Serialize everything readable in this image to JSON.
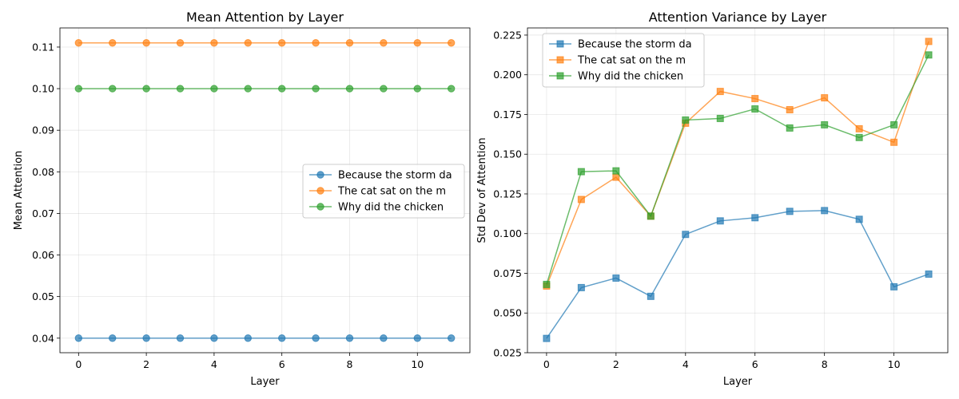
{
  "chart_data": [
    {
      "type": "line",
      "title": "Mean Attention by Layer",
      "xlabel": "Layer",
      "ylabel": "Mean Attention",
      "x": [
        0,
        1,
        2,
        3,
        4,
        5,
        6,
        7,
        8,
        9,
        10,
        11
      ],
      "xlim": [
        -0.55,
        11.55
      ],
      "ylim": [
        0.0365,
        0.1146
      ],
      "xticks": [
        0,
        2,
        4,
        6,
        8,
        10
      ],
      "yticks": [
        0.04,
        0.05,
        0.06,
        0.07,
        0.08,
        0.09,
        0.1,
        0.11
      ],
      "ytick_labels": [
        "0.04",
        "0.05",
        "0.06",
        "0.07",
        "0.08",
        "0.09",
        "0.10",
        "0.11"
      ],
      "marker": "circle",
      "grid": true,
      "legend_position": "center-right",
      "series": [
        {
          "name": "Because the storm da",
          "color": "#1f77b4",
          "values": [
            0.04,
            0.04,
            0.04,
            0.04,
            0.04,
            0.04,
            0.04,
            0.04,
            0.04,
            0.04,
            0.04,
            0.04
          ]
        },
        {
          "name": "The cat sat on the m",
          "color": "#ff7f0e",
          "values": [
            0.111,
            0.111,
            0.111,
            0.111,
            0.111,
            0.111,
            0.111,
            0.111,
            0.111,
            0.111,
            0.111,
            0.111
          ]
        },
        {
          "name": "Why did the chicken",
          "color": "#2ca02c",
          "values": [
            0.1,
            0.1,
            0.1,
            0.1,
            0.1,
            0.1,
            0.1,
            0.1,
            0.1,
            0.1,
            0.1,
            0.1
          ]
        }
      ]
    },
    {
      "type": "line",
      "title": "Attention Variance by Layer",
      "xlabel": "Layer",
      "ylabel": "Std Dev of Attention",
      "x": [
        0,
        1,
        2,
        3,
        4,
        5,
        6,
        7,
        8,
        9,
        10,
        11
      ],
      "xlim": [
        -0.55,
        11.55
      ],
      "ylim": [
        0.025,
        0.2295
      ],
      "xticks": [
        0,
        2,
        4,
        6,
        8,
        10
      ],
      "yticks": [
        0.025,
        0.05,
        0.075,
        0.1,
        0.125,
        0.15,
        0.175,
        0.2,
        0.225
      ],
      "ytick_labels": [
        "0.025",
        "0.050",
        "0.075",
        "0.100",
        "0.125",
        "0.150",
        "0.175",
        "0.200",
        "0.225"
      ],
      "marker": "square",
      "grid": true,
      "legend_position": "top-left",
      "series": [
        {
          "name": "Because the storm da",
          "color": "#1f77b4",
          "values": [
            0.034,
            0.066,
            0.072,
            0.0605,
            0.0995,
            0.108,
            0.11,
            0.114,
            0.1145,
            0.109,
            0.0665,
            0.0745
          ]
        },
        {
          "name": "The cat sat on the m",
          "color": "#ff7f0e",
          "values": [
            0.067,
            0.1215,
            0.1355,
            0.111,
            0.1695,
            0.1895,
            0.185,
            0.178,
            0.1855,
            0.166,
            0.1575,
            0.221
          ]
        },
        {
          "name": "Why did the chicken",
          "color": "#2ca02c",
          "values": [
            0.068,
            0.139,
            0.1395,
            0.111,
            0.1715,
            0.1725,
            0.1785,
            0.1665,
            0.1685,
            0.1605,
            0.1685,
            0.2125
          ]
        }
      ]
    }
  ]
}
